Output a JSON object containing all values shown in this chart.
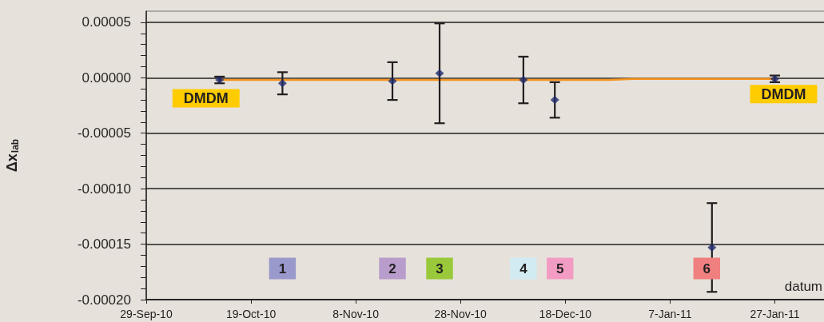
{
  "chart_data": {
    "type": "scatter",
    "ylabel": "Δx$_{lab}$",
    "xlabel": "datum",
    "x": [
      "2010-10-13",
      "2010-10-25",
      "2010-11-15",
      "2010-11-24",
      "2010-12-10",
      "2010-12-16",
      "2011-01-15",
      "2011-01-27"
    ],
    "series": [
      {
        "color": "#1f2a6e",
        "values": [
          -2e-06,
          -5e-06,
          -3e-06,
          4e-06,
          -2e-06,
          -2e-05,
          -0.000153,
          -1e-06
        ],
        "errors": [
          3e-06,
          1e-05,
          1.7e-05,
          4.5e-05,
          2.1e-05,
          1.6e-05,
          4e-05,
          3e-06
        ]
      },
      {
        "type": "line",
        "color": "#f7941d",
        "marker": "none",
        "x": [
          "2010-10-13",
          "2010-12-26",
          "2010-12-31",
          "2011-01-27"
        ],
        "values": [
          -2e-06,
          -2e-06,
          -1e-06,
          -1e-06
        ]
      }
    ],
    "marker": "diamond",
    "grid": "y",
    "xlim": [
      "2010-09-29",
      "2011-02-06"
    ],
    "xticks": [
      {
        "value": "2010-09-29",
        "label": "29-Sep-10"
      },
      {
        "value": "2010-10-19",
        "label": "19-Oct-10"
      },
      {
        "value": "2010-11-08",
        "label": "8-Nov-10"
      },
      {
        "value": "2010-11-28",
        "label": "28-Nov-10"
      },
      {
        "value": "2010-12-18",
        "label": "18-Dec-10"
      },
      {
        "value": "2011-01-07",
        "label": "7-Jan-11"
      },
      {
        "value": "2011-01-27",
        "label": "27-Jan-11"
      }
    ],
    "ylim": [
      -0.0002,
      6e-05
    ],
    "yticks": [
      {
        "value": -0.0002,
        "label": "-0.00020"
      },
      {
        "value": -0.00019,
        "label": null
      },
      {
        "value": -0.00018,
        "label": null
      },
      {
        "value": -0.00017,
        "label": null
      },
      {
        "value": -0.00016,
        "label": null
      },
      {
        "value": -0.00015,
        "label": "-0.00015"
      },
      {
        "value": -0.00014,
        "label": null
      },
      {
        "value": -0.00013,
        "label": null
      },
      {
        "value": -0.00012,
        "label": null
      },
      {
        "value": -0.00011,
        "label": null
      },
      {
        "value": -0.0001,
        "label": "-0.00010"
      },
      {
        "value": -9e-05,
        "label": null
      },
      {
        "value": -8e-05,
        "label": null
      },
      {
        "value": -7e-05,
        "label": null
      },
      {
        "value": -6e-05,
        "label": null
      },
      {
        "value": -5e-05,
        "label": "-0.00005"
      },
      {
        "value": -4e-05,
        "label": null
      },
      {
        "value": -3e-05,
        "label": null
      },
      {
        "value": -2e-05,
        "label": null
      },
      {
        "value": -1e-05,
        "label": null
      },
      {
        "value": 0,
        "label": "0.00000"
      },
      {
        "value": 1e-05,
        "label": null
      },
      {
        "value": 2e-05,
        "label": null
      },
      {
        "value": 3e-05,
        "label": null
      },
      {
        "value": 4e-05,
        "label": null
      },
      {
        "value": 5e-05,
        "label": "0.00005"
      }
    ],
    "annotations": [
      {
        "text": "DMDM",
        "x": "2010-10-13",
        "y": -2e-06
      },
      {
        "text": "1",
        "x": "2010-10-25",
        "y": -0.000172
      },
      {
        "text": "2",
        "x": "2010-11-15",
        "y": -0.000172
      },
      {
        "text": "3",
        "x": "2010-11-24",
        "y": -0.000172
      },
      {
        "text": "4",
        "x": "2010-12-10",
        "y": -0.000172
      },
      {
        "text": "5",
        "x": "2010-12-17",
        "y": -0.000172
      },
      {
        "text": "6",
        "x": "2011-01-14",
        "y": -0.000172
      },
      {
        "text": "DMDM",
        "x": "2011-01-27",
        "y": -1e-06
      }
    ]
  }
}
